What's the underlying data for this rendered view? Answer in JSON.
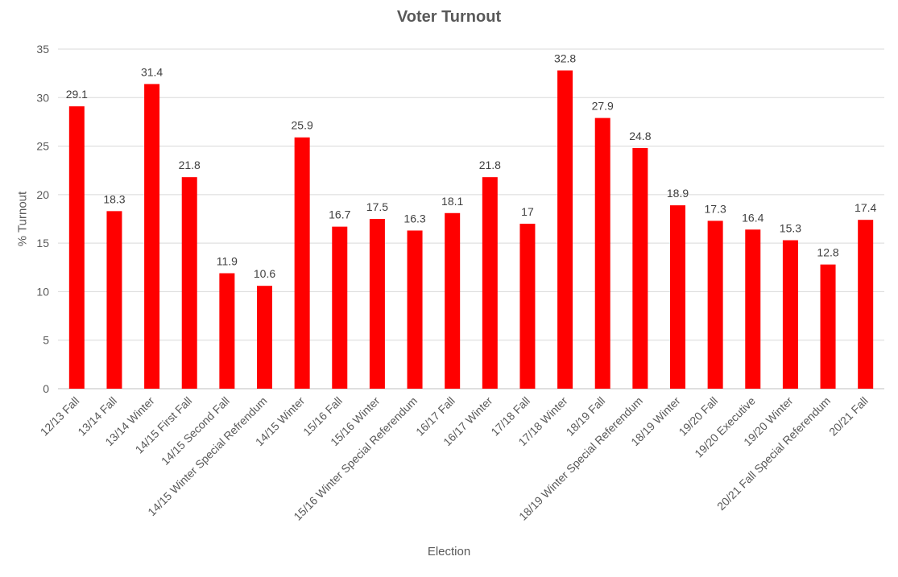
{
  "chart_data": {
    "type": "bar",
    "title": "Voter Turnout",
    "xlabel": "Election",
    "ylabel": "% Turnout",
    "ylim": [
      0,
      35
    ],
    "yticks": [
      0,
      5,
      10,
      15,
      20,
      25,
      30,
      35
    ],
    "grid": true,
    "bar_color": "#ff0000",
    "categories": [
      "12/13 Fall",
      "13/14 Fall",
      "13/14 Winter",
      "14/15 First Fall",
      "14/15 Second Fall",
      "14/15 Winter Special Refrendum",
      "14/15 Winter",
      "15/16 Fall",
      "15/16 Winter",
      "15/16 Winter Special Referendum",
      "16/17 Fall",
      "16/17 Winter",
      "17/18 Fall",
      "17/18 Winter",
      "18/19 Fall",
      "18/19 Winter Special Referendum",
      "18/19 Winter",
      "19/20 Fall",
      "19/20 Executive",
      "19/20 Winter",
      "20/21 Fall Special Referendum",
      "20/21 Fall"
    ],
    "values": [
      29.1,
      18.3,
      31.4,
      21.8,
      11.9,
      10.6,
      25.9,
      16.7,
      17.5,
      16.3,
      18.1,
      21.8,
      17,
      32.8,
      27.9,
      24.8,
      18.9,
      17.3,
      16.4,
      15.3,
      12.8,
      17.4
    ]
  }
}
